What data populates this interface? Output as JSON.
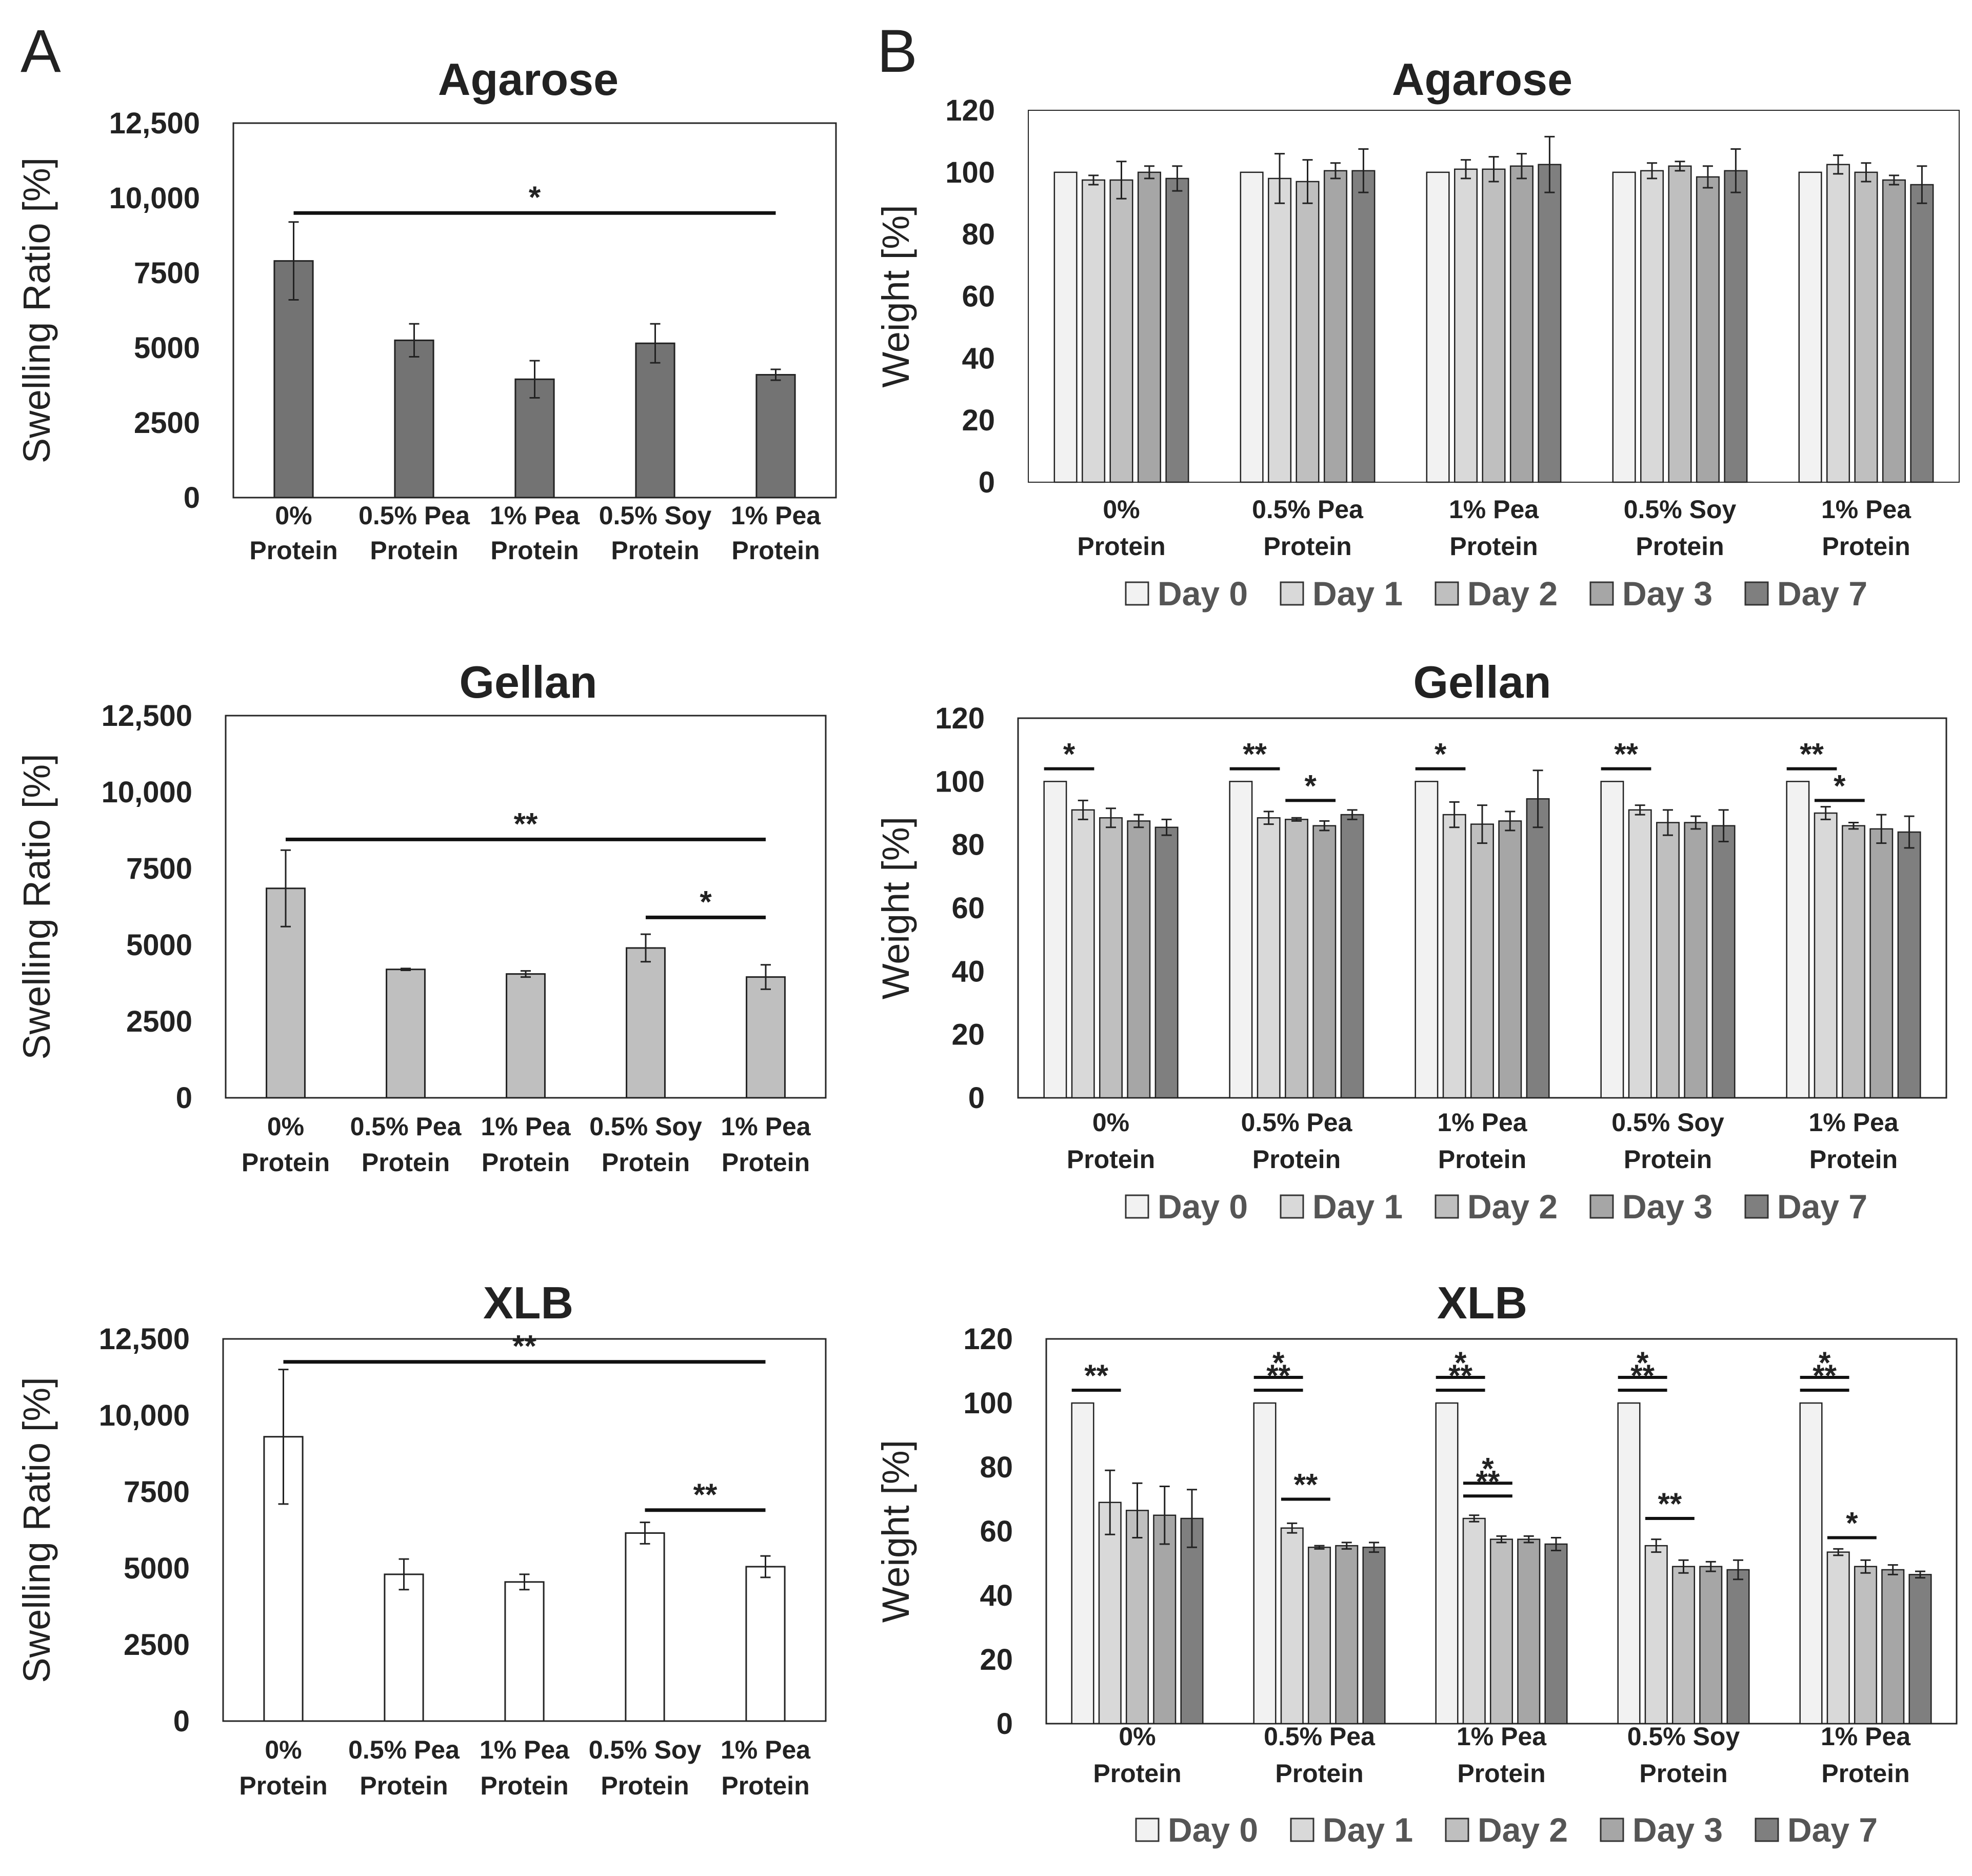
{
  "panel_labels": {
    "a": "A",
    "b": "B"
  },
  "chart_data": [
    {
      "id": "A-agarose",
      "type": "bar",
      "title": "Agarose",
      "ylabel": "Swelling Ratio [%]",
      "categories": [
        "0% Protein",
        "0.5% Pea Protein",
        "1% Pea Protein",
        "0.5% Soy Protein",
        "1% Pea Protein"
      ],
      "values": [
        7900,
        5250,
        3950,
        5150,
        4100
      ],
      "errors": [
        1300,
        550,
        620,
        650,
        180
      ],
      "ylim": [
        0,
        12500
      ],
      "yticks": [
        0,
        2500,
        5000,
        7500,
        10000,
        12500
      ],
      "ytick_labels": [
        "0",
        "2500",
        "5000",
        "7500",
        "10,000",
        "12,500"
      ],
      "bar_color": "#737373",
      "significance": [
        {
          "from": 0,
          "to": 4,
          "y": 9500,
          "label": "*"
        }
      ]
    },
    {
      "id": "A-gellan",
      "type": "bar",
      "title": "Gellan",
      "ylabel": "Swelling Ratio [%]",
      "categories": [
        "0% Protein",
        "0.5% Pea Protein",
        "1% Pea Protein",
        "0.5% Soy Protein",
        "1% Pea Protein"
      ],
      "values": [
        6850,
        4200,
        4050,
        4900,
        3950
      ],
      "errors": [
        1250,
        30,
        100,
        450,
        400
      ],
      "ylim": [
        0,
        12500
      ],
      "yticks": [
        0,
        2500,
        5000,
        7500,
        10000,
        12500
      ],
      "ytick_labels": [
        "0",
        "2500",
        "5000",
        "7500",
        "10,000",
        "12,500"
      ],
      "bar_color": "#bfbfbf",
      "significance": [
        {
          "from": 0,
          "to": 4,
          "y": 8450,
          "label": "**"
        },
        {
          "from": 3,
          "to": 4,
          "y": 5900,
          "label": "*"
        }
      ]
    },
    {
      "id": "A-xlb",
      "type": "bar",
      "title": "XLB",
      "ylabel": "Swelling Ratio [%]",
      "categories": [
        "0% Protein",
        "0.5% Pea Protein",
        "1% Pea Protein",
        "0.5% Soy Protein",
        "1% Pea Protein"
      ],
      "values": [
        9300,
        4800,
        4550,
        6150,
        5050
      ],
      "errors": [
        2200,
        500,
        250,
        350,
        350
      ],
      "ylim": [
        0,
        12500
      ],
      "yticks": [
        0,
        2500,
        5000,
        7500,
        10000,
        12500
      ],
      "ytick_labels": [
        "0",
        "2500",
        "5000",
        "7500",
        "10,000",
        "12,500"
      ],
      "bar_color": "#ffffff",
      "significance": [
        {
          "from": 0,
          "to": 4,
          "y": 11750,
          "label": "**"
        },
        {
          "from": 3,
          "to": 4,
          "y": 6900,
          "label": "**"
        }
      ]
    },
    {
      "id": "B-agarose",
      "type": "bar",
      "title": "Agarose",
      "ylabel": "Weight [%]",
      "categories": [
        "0% Protein",
        "0.5% Pea Protein",
        "1% Pea Protein",
        "0.5% Soy Protein",
        "1% Pea Protein"
      ],
      "legend": [
        "Day 0",
        "Day 1",
        "Day 2",
        "Day 3",
        "Day 7"
      ],
      "colors": [
        "#f2f2f2",
        "#d9d9d9",
        "#bfbfbf",
        "#a6a6a6",
        "#7f7f7f"
      ],
      "series": [
        {
          "name": "Day 0",
          "values": [
            100,
            100,
            100,
            100,
            100
          ],
          "errors": [
            0,
            0,
            0,
            0,
            0
          ]
        },
        {
          "name": "Day 1",
          "values": [
            97.5,
            98,
            101,
            100.5,
            102.5
          ],
          "errors": [
            1.5,
            8,
            3,
            2.5,
            3
          ]
        },
        {
          "name": "Day 2",
          "values": [
            97.5,
            97,
            101,
            102,
            100
          ],
          "errors": [
            6,
            7,
            4,
            1.5,
            3
          ]
        },
        {
          "name": "Day 3",
          "values": [
            100,
            100.5,
            102,
            98.5,
            97.5
          ],
          "errors": [
            2,
            2.5,
            4,
            3.5,
            1.5
          ]
        },
        {
          "name": "Day 7",
          "values": [
            98,
            100.5,
            102.5,
            100.5,
            96
          ],
          "errors": [
            4,
            7,
            9,
            7,
            6
          ]
        }
      ],
      "ylim": [
        0,
        120
      ],
      "yticks": [
        0,
        20,
        40,
        60,
        80,
        100,
        120
      ],
      "ytick_labels": [
        "0",
        "20",
        "40",
        "60",
        "80",
        "100",
        "120"
      ],
      "significance": []
    },
    {
      "id": "B-gellan",
      "type": "bar",
      "title": "Gellan",
      "ylabel": "Weight [%]",
      "categories": [
        "0% Protein",
        "0.5% Pea Protein",
        "1% Pea Protein",
        "0.5% Soy Protein",
        "1% Pea Protein"
      ],
      "legend": [
        "Day 0",
        "Day 1",
        "Day 2",
        "Day 3",
        "Day 7"
      ],
      "colors": [
        "#f2f2f2",
        "#d9d9d9",
        "#bfbfbf",
        "#a6a6a6",
        "#7f7f7f"
      ],
      "series": [
        {
          "name": "Day 0",
          "values": [
            100,
            100,
            100,
            100,
            100
          ],
          "errors": [
            0,
            0,
            0,
            0,
            0
          ]
        },
        {
          "name": "Day 1",
          "values": [
            91,
            88.5,
            89.5,
            91,
            90
          ],
          "errors": [
            3,
            2,
            4,
            1.5,
            2
          ]
        },
        {
          "name": "Day 2",
          "values": [
            88.5,
            88,
            86.5,
            87,
            86
          ],
          "errors": [
            3,
            0.5,
            6,
            4,
            1
          ]
        },
        {
          "name": "Day 3",
          "values": [
            87.5,
            86,
            87.5,
            87,
            85
          ],
          "errors": [
            2,
            1.5,
            3,
            2,
            4.5
          ]
        },
        {
          "name": "Day 7",
          "values": [
            85.5,
            89.5,
            94.5,
            86,
            84
          ],
          "errors": [
            2.5,
            1.5,
            9,
            5,
            5
          ]
        }
      ],
      "ylim": [
        0,
        120
      ],
      "yticks": [
        0,
        20,
        40,
        60,
        80,
        100,
        120
      ],
      "ytick_labels": [
        "0",
        "20",
        "40",
        "60",
        "80",
        "100",
        "120"
      ],
      "significance": [
        {
          "group": 0,
          "from": 0,
          "to": 1,
          "y": 104,
          "label": "*"
        },
        {
          "group": 1,
          "from": 0,
          "to": 1,
          "y": 104,
          "label": "**"
        },
        {
          "group": 1,
          "from": 2,
          "to": 3,
          "y": 94,
          "label": "*"
        },
        {
          "group": 2,
          "from": 0,
          "to": 1,
          "y": 104,
          "label": "*"
        },
        {
          "group": 3,
          "from": 0,
          "to": 1,
          "y": 104,
          "label": "**"
        },
        {
          "group": 4,
          "from": 0,
          "to": 1,
          "y": 104,
          "label": "**"
        },
        {
          "group": 4,
          "from": 1,
          "to": 2,
          "y": 94,
          "label": "*"
        }
      ]
    },
    {
      "id": "B-xlb",
      "type": "bar",
      "title": "XLB",
      "ylabel": "Weight [%]",
      "categories": [
        "0% Protein",
        "0.5% Pea Protein",
        "1% Pea Protein",
        "0.5% Soy Protein",
        "1% Pea Protein"
      ],
      "legend": [
        "Day 0",
        "Day 1",
        "Day 2",
        "Day 3",
        "Day 7"
      ],
      "colors": [
        "#f2f2f2",
        "#d9d9d9",
        "#bfbfbf",
        "#a6a6a6",
        "#7f7f7f"
      ],
      "series": [
        {
          "name": "Day 0",
          "values": [
            100,
            100,
            100,
            100,
            100
          ],
          "errors": [
            0,
            0,
            0,
            0,
            0
          ]
        },
        {
          "name": "Day 1",
          "values": [
            69,
            61,
            64,
            55.5,
            53.5
          ],
          "errors": [
            10,
            1.5,
            1,
            2,
            1
          ]
        },
        {
          "name": "Day 2",
          "values": [
            66.5,
            55,
            57.5,
            49,
            49
          ],
          "errors": [
            8.5,
            0.5,
            1,
            2,
            2
          ]
        },
        {
          "name": "Day 3",
          "values": [
            65,
            55.5,
            57.5,
            49,
            48
          ],
          "errors": [
            9,
            1,
            1,
            1.5,
            1.5
          ]
        },
        {
          "name": "Day 7",
          "values": [
            64,
            55,
            56,
            48,
            46.5
          ],
          "errors": [
            9,
            1.5,
            2,
            3,
            1
          ]
        }
      ],
      "ylim": [
        0,
        120
      ],
      "yticks": [
        0,
        20,
        40,
        60,
        80,
        100,
        120
      ],
      "ytick_labels": [
        "0",
        "20",
        "40",
        "60",
        "80",
        "100",
        "120"
      ],
      "significance": [
        {
          "group": 0,
          "from": 0,
          "to": 1,
          "y": 104,
          "label": "**"
        },
        {
          "group": 1,
          "from": 0,
          "to": 1,
          "y": 104,
          "label": "**"
        },
        {
          "group": 1,
          "from": 0,
          "to": 1,
          "y": 108,
          "label": "*"
        },
        {
          "group": 1,
          "from": 1,
          "to": 2,
          "y": 70,
          "label": "**"
        },
        {
          "group": 2,
          "from": 0,
          "to": 1,
          "y": 104,
          "label": "**"
        },
        {
          "group": 2,
          "from": 0,
          "to": 1,
          "y": 108,
          "label": "*"
        },
        {
          "group": 2,
          "from": 1,
          "to": 2,
          "y": 71,
          "label": "**"
        },
        {
          "group": 2,
          "from": 1,
          "to": 2,
          "y": 75,
          "label": "*"
        },
        {
          "group": 3,
          "from": 0,
          "to": 1,
          "y": 104,
          "label": "**"
        },
        {
          "group": 3,
          "from": 0,
          "to": 1,
          "y": 108,
          "label": "*"
        },
        {
          "group": 3,
          "from": 1,
          "to": 2,
          "y": 64,
          "label": "**"
        },
        {
          "group": 4,
          "from": 0,
          "to": 1,
          "y": 104,
          "label": "**"
        },
        {
          "group": 4,
          "from": 0,
          "to": 1,
          "y": 108,
          "label": "*"
        },
        {
          "group": 4,
          "from": 1,
          "to": 2,
          "y": 58,
          "label": "*"
        }
      ]
    }
  ]
}
